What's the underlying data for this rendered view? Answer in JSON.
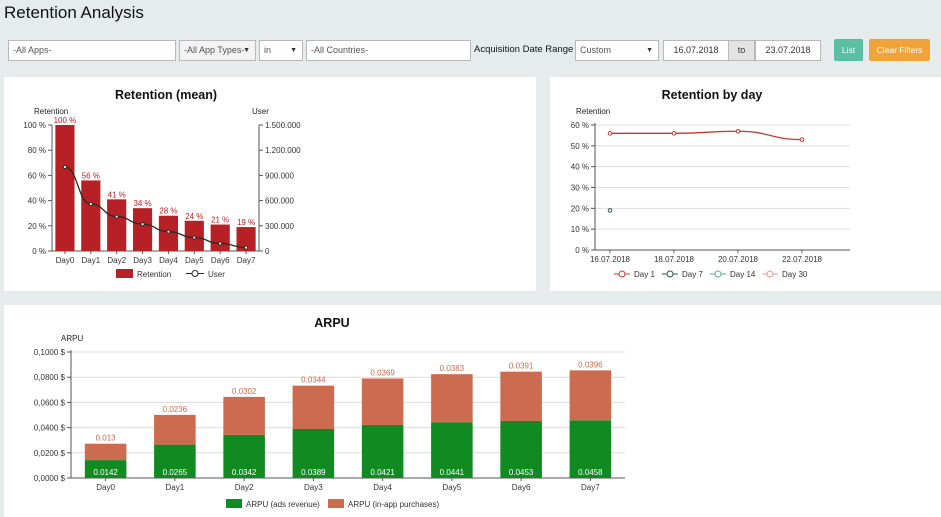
{
  "page": {
    "title": "Retention Analysis"
  },
  "filters": {
    "apps_placeholder": "-All Apps-",
    "app_types_value": "-All App Types-",
    "in_value": "in",
    "countries_placeholder": "-All Countries-",
    "date_range_label": "Acquisition Date Range :",
    "date_range_value": "Custom",
    "date_from": "16.07.2018",
    "to_label": "to",
    "date_to": "23.07.2018",
    "list_label": "List",
    "clear_label": "Clear Filters"
  },
  "colors": {
    "retention_bar": "#b72025",
    "user_line": "#2a2a2a",
    "day1": "#c0392b",
    "day7": "#34495e",
    "day14": "#5fa8a0",
    "day30": "#e4977a",
    "ads_revenue": "#108a21",
    "in_app": "#cc6b4f"
  },
  "chart_data": [
    {
      "type": "bar",
      "title": "Retention (mean)",
      "ylabel": "Retention",
      "y2label": "User",
      "categories": [
        "Day0",
        "Day1",
        "Day2",
        "Day3",
        "Day4",
        "Day5",
        "Day6",
        "Day7"
      ],
      "series": [
        {
          "name": "Retention",
          "type": "bar",
          "values": [
            100,
            56,
            41,
            34,
            28,
            24,
            21,
            19
          ],
          "labels": [
            "100 %",
            "56 %",
            "41 %",
            "34 %",
            "28 %",
            "24 %",
            "21 %",
            "19 %"
          ]
        },
        {
          "name": "User",
          "type": "line",
          "axis": "right",
          "values": [
            1000000,
            560000,
            410000,
            320000,
            230000,
            160000,
            90000,
            40000
          ]
        }
      ],
      "ylim": [
        0,
        100
      ],
      "y_ticks": [
        "0 %",
        "20 %",
        "40 %",
        "60 %",
        "80 %",
        "100 %"
      ],
      "y2lim": [
        0,
        1500000
      ],
      "y2_ticks": [
        "0",
        "300.000",
        "600.000",
        "900.000",
        "1.200.000",
        "1.500.000"
      ],
      "grid": false,
      "legend": "bottom"
    },
    {
      "type": "line",
      "title": "Retention by day",
      "ylabel": "Retention",
      "x_ticks": [
        "16.07.2018",
        "18.07.2018",
        "20.07.2018",
        "22.07.2018"
      ],
      "ylim": [
        0,
        60
      ],
      "y_ticks": [
        "0 %",
        "10 %",
        "20 %",
        "30 %",
        "40 %",
        "50 %",
        "60 %"
      ],
      "series": [
        {
          "name": "Day 1",
          "x": [
            "16.07.2018",
            "18.07.2018",
            "20.07.2018",
            "22.07.2018"
          ],
          "values": [
            56,
            56,
            57,
            53
          ]
        },
        {
          "name": "Day 7",
          "x": [
            "16.07.2018"
          ],
          "values": [
            19
          ]
        },
        {
          "name": "Day 14",
          "x": [],
          "values": []
        },
        {
          "name": "Day 30",
          "x": [],
          "values": []
        }
      ],
      "grid": true,
      "legend": "bottom"
    },
    {
      "type": "bar",
      "stacked": true,
      "title": "ARPU",
      "ylabel": "ARPU",
      "categories": [
        "Day0",
        "Day1",
        "Day2",
        "Day3",
        "Day4",
        "Day5",
        "Day6",
        "Day7"
      ],
      "series": [
        {
          "name": "ARPU (ads revenue)",
          "values": [
            0.0142,
            0.0265,
            0.0342,
            0.0389,
            0.0421,
            0.0441,
            0.0453,
            0.0458
          ]
        },
        {
          "name": "ARPU (in-app purchases)",
          "values": [
            0.013,
            0.0236,
            0.0302,
            0.0344,
            0.0369,
            0.0383,
            0.0391,
            0.0396
          ]
        }
      ],
      "ylim": [
        0,
        0.1
      ],
      "y_ticks": [
        "0,0000 $",
        "0,0200 $",
        "0,0400 $",
        "0,0600 $",
        "0,0800 $",
        "0,1000 $"
      ],
      "grid": true,
      "legend": "bottom"
    }
  ]
}
